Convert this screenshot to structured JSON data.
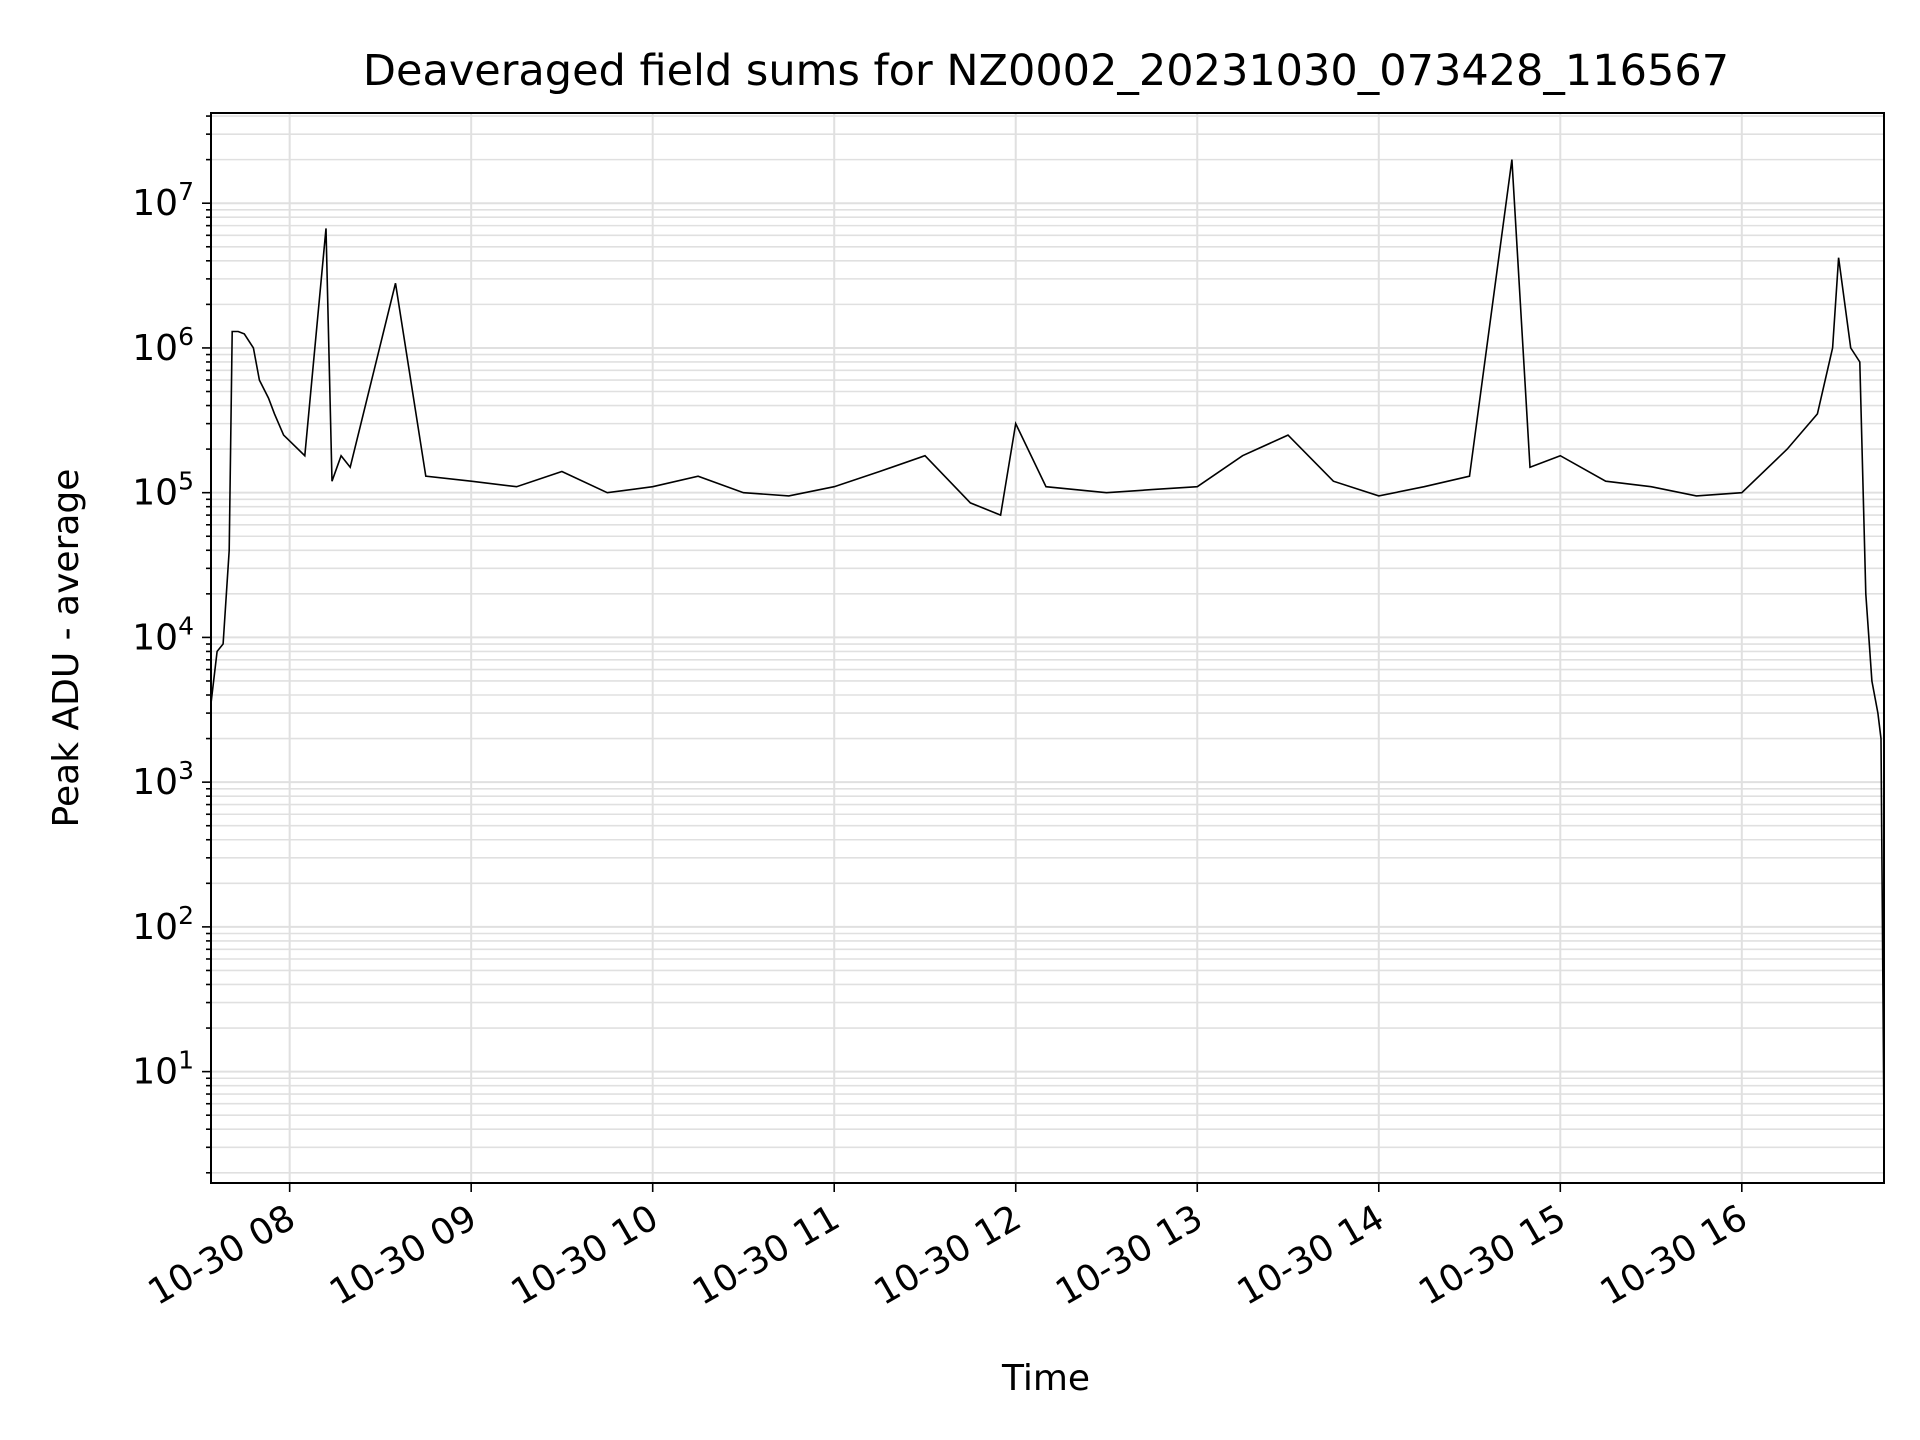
{
  "chart_data": {
    "type": "line",
    "title": "Deaveraged field sums for NZ0002_20231030_073428_116567",
    "xlabel": "Time",
    "ylabel": "Peak ADU - average",
    "yscale": "log",
    "grid": true,
    "line_color": "#000000",
    "grid_color": "#e0e0e0",
    "xlim": [
      "2023-10-30 07:34",
      "2023-10-30 16:47"
    ],
    "ylim": [
      1.7,
      42000000
    ],
    "x_ticks": [
      {
        "value": "2023-10-30 08:00",
        "label": "10-30 08"
      },
      {
        "value": "2023-10-30 09:00",
        "label": "10-30 09"
      },
      {
        "value": "2023-10-30 10:00",
        "label": "10-30 10"
      },
      {
        "value": "2023-10-30 11:00",
        "label": "10-30 11"
      },
      {
        "value": "2023-10-30 12:00",
        "label": "10-30 12"
      },
      {
        "value": "2023-10-30 13:00",
        "label": "10-30 13"
      },
      {
        "value": "2023-10-30 14:00",
        "label": "10-30 14"
      },
      {
        "value": "2023-10-30 15:00",
        "label": "10-30 15"
      },
      {
        "value": "2023-10-30 16:00",
        "label": "10-30 16"
      }
    ],
    "y_ticks": [
      {
        "value": 10,
        "base": "10",
        "exp": "1"
      },
      {
        "value": 100,
        "base": "10",
        "exp": "2"
      },
      {
        "value": 1000,
        "base": "10",
        "exp": "3"
      },
      {
        "value": 10000,
        "base": "10",
        "exp": "4"
      },
      {
        "value": 100000,
        "base": "10",
        "exp": "5"
      },
      {
        "value": 1000000,
        "base": "10",
        "exp": "6"
      },
      {
        "value": 10000000,
        "base": "10",
        "exp": "7"
      }
    ],
    "series": [
      {
        "x": [
          "2023-10-30 07:34",
          "2023-10-30 07:36",
          "2023-10-30 07:38",
          "2023-10-30 07:40",
          "2023-10-30 07:41",
          "2023-10-30 07:43",
          "2023-10-30 07:45",
          "2023-10-30 07:48",
          "2023-10-30 07:50",
          "2023-10-30 07:53",
          "2023-10-30 07:55",
          "2023-10-30 07:58",
          "2023-10-30 08:05",
          "2023-10-30 08:12",
          "2023-10-30 08:14",
          "2023-10-30 08:17",
          "2023-10-30 08:20",
          "2023-10-30 08:35",
          "2023-10-30 08:45",
          "2023-10-30 09:00",
          "2023-10-30 09:15",
          "2023-10-30 09:30",
          "2023-10-30 09:45",
          "2023-10-30 10:00",
          "2023-10-30 10:15",
          "2023-10-30 10:30",
          "2023-10-30 10:45",
          "2023-10-30 11:00",
          "2023-10-30 11:15",
          "2023-10-30 11:30",
          "2023-10-30 11:45",
          "2023-10-30 11:55",
          "2023-10-30 12:00",
          "2023-10-30 12:10",
          "2023-10-30 12:30",
          "2023-10-30 12:45",
          "2023-10-30 13:00",
          "2023-10-30 13:15",
          "2023-10-30 13:30",
          "2023-10-30 13:45",
          "2023-10-30 14:00",
          "2023-10-30 14:15",
          "2023-10-30 14:30",
          "2023-10-30 14:44",
          "2023-10-30 14:50",
          "2023-10-30 15:00",
          "2023-10-30 15:15",
          "2023-10-30 15:30",
          "2023-10-30 15:45",
          "2023-10-30 16:00",
          "2023-10-30 16:15",
          "2023-10-30 16:25",
          "2023-10-30 16:30",
          "2023-10-30 16:32",
          "2023-10-30 16:36",
          "2023-10-30 16:39",
          "2023-10-30 16:41",
          "2023-10-30 16:43",
          "2023-10-30 16:45",
          "2023-10-30 16:46",
          "2023-10-30 16:47"
        ],
        "y": [
          3500,
          8000,
          9000,
          40000,
          1300000,
          1300000,
          1250000,
          1000000,
          600000,
          450000,
          350000,
          250000,
          180000,
          6700000,
          120000,
          180000,
          150000,
          2800000,
          130000,
          120000,
          110000,
          140000,
          100000,
          110000,
          130000,
          100000,
          95000,
          110000,
          140000,
          180000,
          85000,
          70000,
          300000,
          110000,
          100000,
          105000,
          110000,
          180000,
          250000,
          120000,
          95000,
          110000,
          130000,
          20000000,
          150000,
          180000,
          120000,
          110000,
          95000,
          100000,
          200000,
          350000,
          1000000,
          4200000,
          1000000,
          800000,
          20000,
          5000,
          3000,
          2000,
          4
        ]
      }
    ]
  }
}
